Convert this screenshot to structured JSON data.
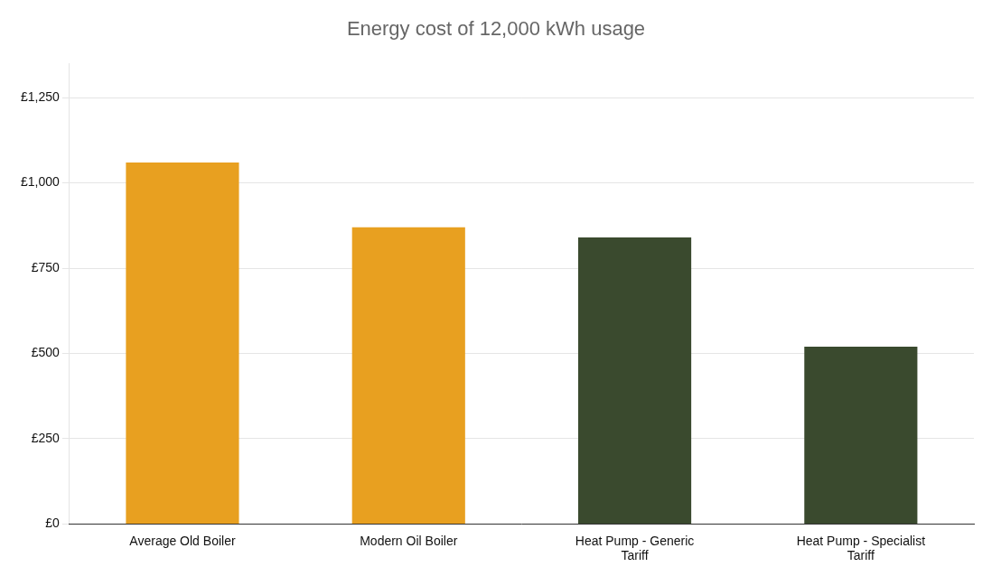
{
  "chart_data": {
    "type": "bar",
    "title": "Energy cost of 12,000 kWh usage",
    "categories": [
      "Average Old Boiler",
      "Modern Oil Boiler",
      "Heat Pump - Generic\nTariff",
      "Heat Pump - Specialist\nTariff"
    ],
    "values": [
      1060,
      870,
      840,
      520
    ],
    "colors": [
      "#E8A020",
      "#E8A020",
      "#3A4A2E",
      "#3A4A2E"
    ],
    "ylim": [
      0,
      1350
    ],
    "yticks": [
      {
        "value": 0,
        "label": "£0"
      },
      {
        "value": 250,
        "label": "£250"
      },
      {
        "value": 500,
        "label": "£500"
      },
      {
        "value": 750,
        "label": "£750"
      },
      {
        "value": 1000,
        "label": "£1,000"
      },
      {
        "value": 1250,
        "label": "£1,250"
      }
    ],
    "grid": true
  }
}
